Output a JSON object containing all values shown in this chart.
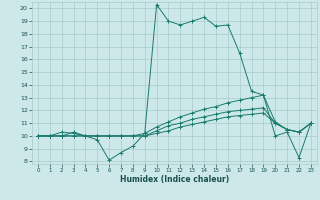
{
  "title": "",
  "xlabel": "Humidex (Indice chaleur)",
  "bg_color": "#cce8e8",
  "grid_color": "#aacccc",
  "line_color": "#1a7a6e",
  "xlim": [
    -0.5,
    23.5
  ],
  "ylim": [
    7.8,
    20.5
  ],
  "xticks": [
    0,
    1,
    2,
    3,
    4,
    5,
    6,
    7,
    8,
    9,
    10,
    11,
    12,
    13,
    14,
    15,
    16,
    17,
    18,
    19,
    20,
    21,
    22,
    23
  ],
  "yticks": [
    8,
    9,
    10,
    11,
    12,
    13,
    14,
    15,
    16,
    17,
    18,
    19,
    20
  ],
  "line1_x": [
    0,
    1,
    2,
    3,
    4,
    5,
    6,
    7,
    8,
    9,
    10,
    11,
    12,
    13,
    14,
    15,
    16,
    17,
    18,
    19,
    20,
    21,
    22,
    23
  ],
  "line1_y": [
    10,
    10,
    10,
    10.3,
    10,
    9.7,
    8.1,
    8.7,
    9.2,
    10.2,
    20.3,
    19.0,
    18.7,
    19.0,
    19.3,
    18.6,
    18.7,
    16.5,
    13.5,
    13.2,
    10.0,
    10.3,
    8.3,
    11.0
  ],
  "line2_x": [
    0,
    1,
    2,
    3,
    4,
    5,
    6,
    7,
    8,
    9,
    10,
    11,
    12,
    13,
    14,
    15,
    16,
    17,
    18,
    19,
    20,
    21,
    22,
    23
  ],
  "line2_y": [
    10,
    10,
    10,
    10,
    10,
    10,
    10,
    10,
    10,
    10.2,
    10.7,
    11.1,
    11.5,
    11.8,
    12.1,
    12.3,
    12.6,
    12.8,
    13.0,
    13.2,
    11.1,
    10.5,
    10.3,
    11.0
  ],
  "line3_x": [
    0,
    1,
    2,
    3,
    4,
    5,
    6,
    7,
    8,
    9,
    10,
    11,
    12,
    13,
    14,
    15,
    16,
    17,
    18,
    19,
    20,
    21,
    22,
    23
  ],
  "line3_y": [
    10,
    10,
    10,
    10,
    10,
    10,
    10,
    10,
    10,
    10,
    10.2,
    10.4,
    10.7,
    10.9,
    11.1,
    11.3,
    11.5,
    11.6,
    11.7,
    11.8,
    11.0,
    10.5,
    10.3,
    11.0
  ],
  "line4_x": [
    0,
    1,
    2,
    3,
    4,
    5,
    6,
    7,
    8,
    9,
    10,
    11,
    12,
    13,
    14,
    15,
    16,
    17,
    18,
    19,
    20,
    21,
    22,
    23
  ],
  "line4_y": [
    10,
    10,
    10.3,
    10.2,
    10,
    10,
    10,
    10,
    10,
    10,
    10.4,
    10.8,
    11.0,
    11.3,
    11.5,
    11.7,
    11.9,
    12.0,
    12.1,
    12.2,
    11.0,
    10.5,
    10.3,
    11.0
  ]
}
